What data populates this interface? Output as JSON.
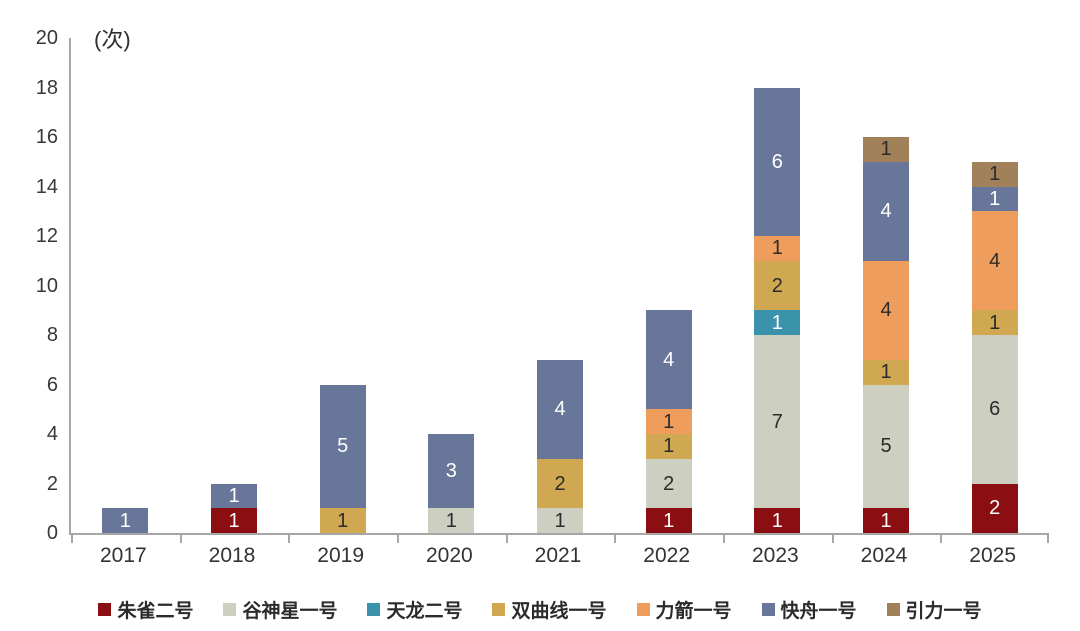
{
  "chart_data": {
    "type": "bar",
    "stacked": true,
    "title": "",
    "ylabel": "(次)",
    "xlabel": "",
    "ylim": [
      0,
      20
    ],
    "ytick_step": 2,
    "yticks": [
      0,
      2,
      4,
      6,
      8,
      10,
      12,
      14,
      16,
      18,
      20
    ],
    "grid": false,
    "legend_position": "bottom",
    "categories": [
      "2017",
      "2018",
      "2019",
      "2020",
      "2021",
      "2022",
      "2023",
      "2024",
      "2025"
    ],
    "series": [
      {
        "name": "朱雀二号",
        "color": "#8a0e12",
        "label_color": "#ffffff",
        "values": [
          0,
          1,
          0,
          0,
          0,
          1,
          1,
          1,
          2
        ]
      },
      {
        "name": "谷神星一号",
        "color": "#cdcfc1",
        "label_color": "#2b2b2b",
        "values": [
          0,
          0,
          0,
          1,
          1,
          2,
          7,
          5,
          6
        ]
      },
      {
        "name": "天龙二号",
        "color": "#3b92ab",
        "label_color": "#ffffff",
        "values": [
          0,
          0,
          0,
          0,
          0,
          0,
          1,
          0,
          0
        ]
      },
      {
        "name": "双曲线一号",
        "color": "#d0a851",
        "label_color": "#2b2b2b",
        "values": [
          0,
          0,
          1,
          0,
          2,
          1,
          2,
          1,
          1
        ]
      },
      {
        "name": "力箭一号",
        "color": "#ee9d5c",
        "label_color": "#2b2b2b",
        "values": [
          0,
          0,
          0,
          0,
          0,
          1,
          1,
          4,
          4
        ]
      },
      {
        "name": "快舟一号",
        "color": "#68769a",
        "label_color": "#ffffff",
        "values": [
          1,
          1,
          5,
          3,
          4,
          4,
          6,
          4,
          1
        ]
      },
      {
        "name": "引力一号",
        "color": "#a1815a",
        "label_color": "#2b2b2b",
        "values": [
          0,
          0,
          0,
          0,
          0,
          0,
          0,
          1,
          1
        ]
      }
    ],
    "totals": [
      1,
      2,
      6,
      4,
      7,
      9,
      18,
      16,
      15
    ],
    "axis_color": "#a6a6a6",
    "tick_label_color": "#383838"
  }
}
